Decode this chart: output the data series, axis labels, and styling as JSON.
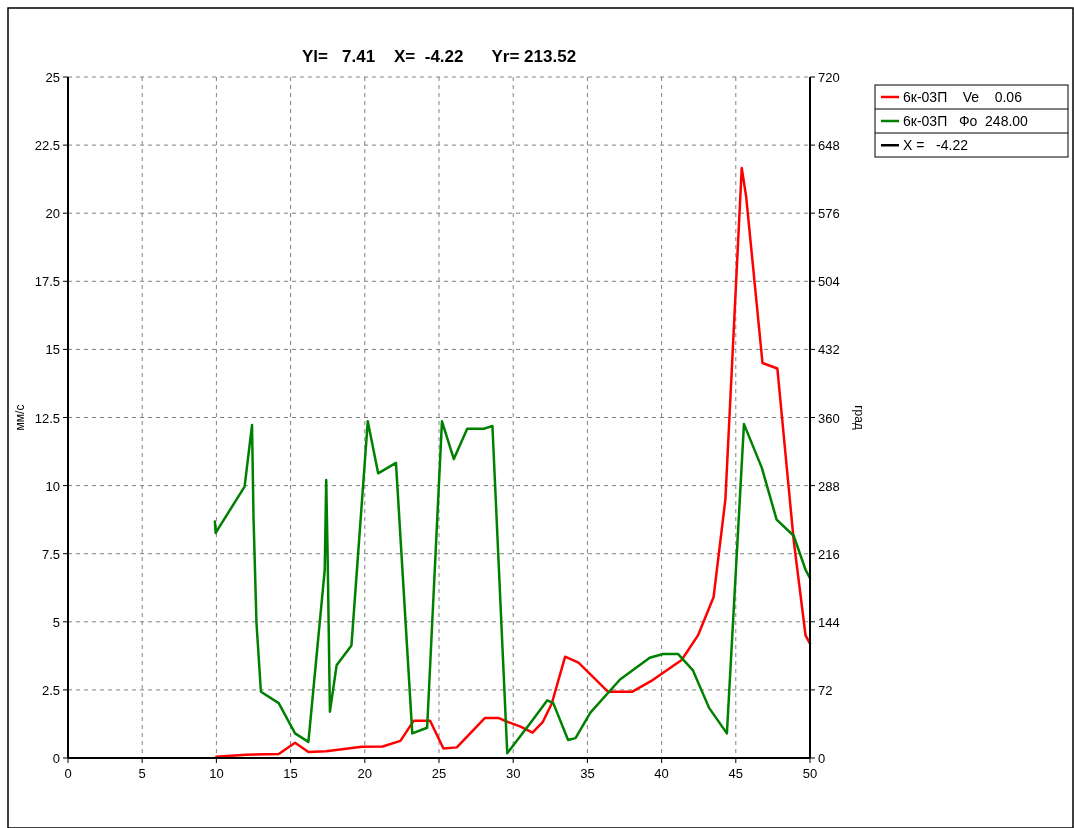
{
  "chart_data": {
    "type": "line",
    "title": "Yl=   7.41    X=  -4.22      Yr= 213.52",
    "ylabel": "мм/с",
    "y2label": "град",
    "xlim": [
      0,
      50
    ],
    "xticks": [
      0,
      5,
      10,
      15,
      20,
      25,
      30,
      35,
      40,
      45,
      50
    ],
    "ylim": [
      0,
      25
    ],
    "yticks": [
      0,
      2.5,
      5,
      7.5,
      10,
      12.5,
      15,
      17.5,
      20,
      22.5,
      25
    ],
    "y2lim": [
      0,
      720
    ],
    "y2ticks": [
      0,
      72,
      144,
      216,
      288,
      360,
      432,
      504,
      576,
      648,
      720
    ],
    "grid": true,
    "legend": "top right",
    "line_style": "solid",
    "annotations": [
      "X =   -4.22"
    ],
    "series": [
      {
        "name": "6к-03П    Ve    0.06",
        "color": "#ff0000",
        "x": [
          10,
          12,
          14.2,
          15.3,
          16.2,
          17.4,
          19.8,
          21.2,
          22.4,
          23.3,
          24.4,
          25.3,
          26.2,
          28.1,
          29.0,
          29.6,
          30.5,
          31.3,
          32.0,
          32.6,
          33.5,
          34.4,
          36.4,
          38.0,
          39.4,
          41.35,
          42.45,
          43.5,
          44.3,
          45.4,
          45.7,
          46.8,
          47.8,
          48.9,
          49.7,
          50
        ],
        "values": [
          0.05,
          0.12,
          0.15,
          0.56,
          0.22,
          0.25,
          0.41,
          0.42,
          0.63,
          1.37,
          1.37,
          0.35,
          0.39,
          1.47,
          1.47,
          1.33,
          1.15,
          0.93,
          1.33,
          2.0,
          3.72,
          3.5,
          2.43,
          2.43,
          2.86,
          3.6,
          4.5,
          5.9,
          9.5,
          21.66,
          20.6,
          14.5,
          14.3,
          8.0,
          4.5,
          4.2
        ]
      },
      {
        "name": "6к-03П   Фо  248.00",
        "color": "#008000",
        "axis": "y2",
        "x": [
          9.9,
          9.95,
          11.9,
          12.4,
          12.5,
          12.7,
          13.0,
          14.2,
          15.3,
          16.2,
          17.3,
          17.4,
          17.5,
          17.65,
          18.1,
          19.1,
          20.2,
          20.9,
          22.1,
          23.2,
          24.2,
          25.2,
          26.0,
          26.9,
          28.0,
          28.6,
          29.6,
          31.3,
          32.3,
          32.7,
          33.7,
          34.2,
          35.2,
          37.2,
          39.2,
          40.1,
          41.1,
          42.1,
          43.2,
          44.4,
          45.55,
          46.75,
          47.75,
          48.9,
          49.7,
          50
        ],
        "values": [
          250,
          238,
          287,
          352,
          255,
          143,
          70,
          58,
          26,
          17,
          199,
          294,
          209,
          49,
          98,
          119,
          356,
          301,
          312,
          26,
          32,
          356,
          316,
          348,
          348,
          351,
          5,
          40,
          61,
          58,
          19,
          21,
          48,
          83,
          106,
          110,
          110,
          93,
          53,
          26,
          353,
          307,
          252,
          235,
          199,
          190
        ]
      }
    ]
  }
}
